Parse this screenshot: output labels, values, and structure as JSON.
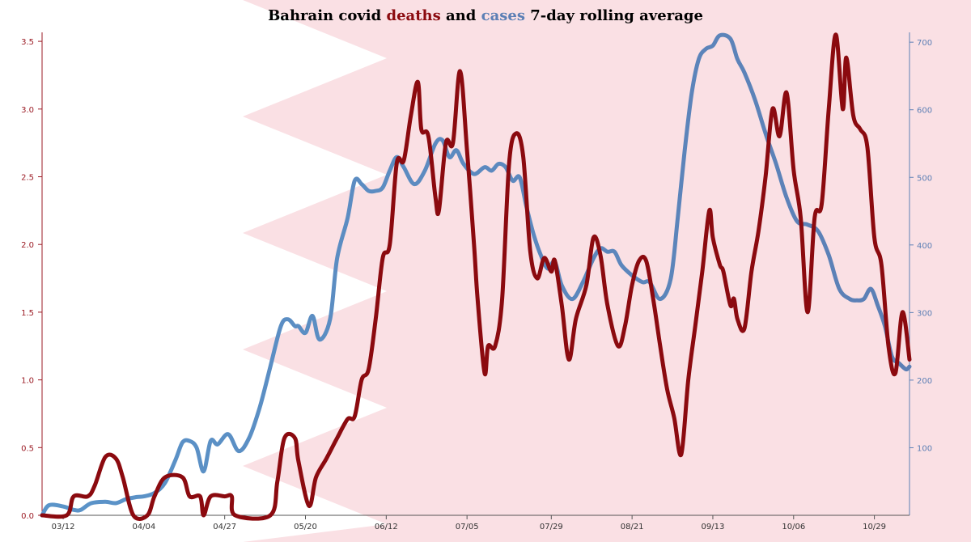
{
  "title": {
    "part1": "Bahrain covid ",
    "deaths_word": "deaths",
    "part2": " and ",
    "cases_word": "cases",
    "part3": " 7-day rolling average"
  },
  "colors": {
    "deaths": "#8b0a0f",
    "cases": "#5c7fb5",
    "cases_early": "#5b94c9",
    "flag": "#fae0e4",
    "axis": "#555555",
    "left_axis": "#9b1b24",
    "right_axis": "#5c7fb5"
  },
  "chart_data": {
    "type": "line",
    "x_axis": {
      "type": "date",
      "range": [
        "2020-03-06",
        "2020-11-08"
      ],
      "tick_labels": [
        "03/12",
        "04/04",
        "04/27",
        "05/20",
        "06/12",
        "07/05",
        "07/29",
        "08/21",
        "09/13",
        "10/06",
        "10/29"
      ],
      "tick_dates": [
        "2020-03-12",
        "2020-04-04",
        "2020-04-27",
        "2020-05-20",
        "2020-06-12",
        "2020-07-05",
        "2020-07-29",
        "2020-08-21",
        "2020-09-13",
        "2020-10-06",
        "2020-10-29"
      ]
    },
    "y_left": {
      "series": "deaths",
      "range": [
        0,
        3.6
      ],
      "ticks": [
        "0.0",
        "0.5",
        "1.0",
        "1.5",
        "2.0",
        "2.5",
        "3.0",
        "3.5"
      ],
      "tick_values": [
        0,
        0.5,
        1.0,
        1.5,
        2.0,
        2.5,
        3.0,
        3.5
      ]
    },
    "y_right": {
      "series": "cases",
      "range": [
        0,
        715
      ],
      "ticks": [
        "100",
        "200",
        "300",
        "400",
        "500",
        "600",
        "700"
      ],
      "tick_values": [
        100,
        200,
        300,
        400,
        500,
        600,
        700
      ]
    },
    "grid": false,
    "series": [
      {
        "key": "deaths",
        "axis": "left",
        "points": [
          [
            "2020-03-06",
            0
          ],
          [
            "2020-03-13",
            0
          ],
          [
            "2020-03-15",
            0.14
          ],
          [
            "2020-03-19",
            0.14
          ],
          [
            "2020-03-21",
            0.22
          ],
          [
            "2020-03-24",
            0.43
          ],
          [
            "2020-03-27",
            0.42
          ],
          [
            "2020-03-29",
            0.28
          ],
          [
            "2020-04-01",
            0.0
          ],
          [
            "2020-04-05",
            0.0
          ],
          [
            "2020-04-07",
            0.14
          ],
          [
            "2020-04-10",
            0.28
          ],
          [
            "2020-04-15",
            0.28
          ],
          [
            "2020-04-17",
            0.14
          ],
          [
            "2020-04-20",
            0.14
          ],
          [
            "2020-04-21",
            0.0
          ],
          [
            "2020-04-23",
            0.14
          ],
          [
            "2020-04-27",
            0.14
          ],
          [
            "2020-04-29",
            0.14
          ],
          [
            "2020-04-30",
            0.0
          ],
          [
            "2020-05-10",
            0.0
          ],
          [
            "2020-05-12",
            0.25
          ],
          [
            "2020-05-14",
            0.57
          ],
          [
            "2020-05-17",
            0.57
          ],
          [
            "2020-05-18",
            0.4
          ],
          [
            "2020-05-21",
            0.07
          ],
          [
            "2020-05-23",
            0.28
          ],
          [
            "2020-05-26",
            0.42
          ],
          [
            "2020-05-29",
            0.57
          ],
          [
            "2020-06-01",
            0.71
          ],
          [
            "2020-06-03",
            0.73
          ],
          [
            "2020-06-05",
            1.0
          ],
          [
            "2020-06-07",
            1.08
          ],
          [
            "2020-06-09",
            1.45
          ],
          [
            "2020-06-11",
            1.9
          ],
          [
            "2020-06-13",
            2.0
          ],
          [
            "2020-06-15",
            2.6
          ],
          [
            "2020-06-17",
            2.62
          ],
          [
            "2020-06-19",
            2.95
          ],
          [
            "2020-06-21",
            3.2
          ],
          [
            "2020-06-22",
            2.85
          ],
          [
            "2020-06-24",
            2.8
          ],
          [
            "2020-06-26",
            2.35
          ],
          [
            "2020-06-27",
            2.25
          ],
          [
            "2020-06-29",
            2.75
          ],
          [
            "2020-07-01",
            2.75
          ],
          [
            "2020-07-03",
            3.28
          ],
          [
            "2020-07-05",
            2.7
          ],
          [
            "2020-07-07",
            2.0
          ],
          [
            "2020-07-08",
            1.6
          ],
          [
            "2020-07-10",
            1.05
          ],
          [
            "2020-07-11",
            1.25
          ],
          [
            "2020-07-13",
            1.25
          ],
          [
            "2020-07-15",
            1.6
          ],
          [
            "2020-07-17",
            2.6
          ],
          [
            "2020-07-19",
            2.82
          ],
          [
            "2020-07-21",
            2.65
          ],
          [
            "2020-07-23",
            1.95
          ],
          [
            "2020-07-25",
            1.75
          ],
          [
            "2020-07-27",
            1.9
          ],
          [
            "2020-07-29",
            1.8
          ],
          [
            "2020-07-30",
            1.88
          ],
          [
            "2020-08-01",
            1.55
          ],
          [
            "2020-08-03",
            1.15
          ],
          [
            "2020-08-05",
            1.45
          ],
          [
            "2020-08-08",
            1.7
          ],
          [
            "2020-08-10",
            2.05
          ],
          [
            "2020-08-12",
            1.92
          ],
          [
            "2020-08-14",
            1.55
          ],
          [
            "2020-08-17",
            1.25
          ],
          [
            "2020-08-19",
            1.4
          ],
          [
            "2020-08-21",
            1.7
          ],
          [
            "2020-08-23",
            1.88
          ],
          [
            "2020-08-25",
            1.88
          ],
          [
            "2020-08-27",
            1.6
          ],
          [
            "2020-08-29",
            1.25
          ],
          [
            "2020-08-31",
            0.93
          ],
          [
            "2020-09-02",
            0.72
          ],
          [
            "2020-09-04",
            0.45
          ],
          [
            "2020-09-06",
            1.0
          ],
          [
            "2020-09-08",
            1.4
          ],
          [
            "2020-09-10",
            1.8
          ],
          [
            "2020-09-12",
            2.25
          ],
          [
            "2020-09-13",
            2.05
          ],
          [
            "2020-09-15",
            1.85
          ],
          [
            "2020-09-16",
            1.8
          ],
          [
            "2020-09-18",
            1.55
          ],
          [
            "2020-09-19",
            1.6
          ],
          [
            "2020-09-20",
            1.45
          ],
          [
            "2020-09-22",
            1.38
          ],
          [
            "2020-09-24",
            1.8
          ],
          [
            "2020-09-26",
            2.1
          ],
          [
            "2020-09-28",
            2.5
          ],
          [
            "2020-09-30",
            3.0
          ],
          [
            "2020-10-02",
            2.8
          ],
          [
            "2020-10-04",
            3.12
          ],
          [
            "2020-10-06",
            2.55
          ],
          [
            "2020-10-08",
            2.2
          ],
          [
            "2020-10-10",
            1.5
          ],
          [
            "2020-10-12",
            2.2
          ],
          [
            "2020-10-14",
            2.3
          ],
          [
            "2020-10-16",
            3.0
          ],
          [
            "2020-10-18",
            3.55
          ],
          [
            "2020-10-20",
            3.0
          ],
          [
            "2020-10-21",
            3.38
          ],
          [
            "2020-10-23",
            2.95
          ],
          [
            "2020-10-25",
            2.85
          ],
          [
            "2020-10-27",
            2.72
          ],
          [
            "2020-10-29",
            2.05
          ],
          [
            "2020-10-31",
            1.85
          ],
          [
            "2020-11-02",
            1.25
          ],
          [
            "2020-11-04",
            1.05
          ],
          [
            "2020-11-06",
            1.5
          ],
          [
            "2020-11-08",
            1.15
          ]
        ]
      },
      {
        "key": "cases",
        "axis": "right",
        "points": [
          [
            "2020-03-06",
            0
          ],
          [
            "2020-03-08",
            15
          ],
          [
            "2020-03-12",
            13
          ],
          [
            "2020-03-15",
            8
          ],
          [
            "2020-03-17",
            8
          ],
          [
            "2020-03-20",
            18
          ],
          [
            "2020-03-24",
            20
          ],
          [
            "2020-03-27",
            18
          ],
          [
            "2020-03-30",
            24
          ],
          [
            "2020-04-02",
            27
          ],
          [
            "2020-04-04",
            28
          ],
          [
            "2020-04-07",
            33
          ],
          [
            "2020-04-10",
            48
          ],
          [
            "2020-04-13",
            82
          ],
          [
            "2020-04-15",
            108
          ],
          [
            "2020-04-17",
            110
          ],
          [
            "2020-04-19",
            100
          ],
          [
            "2020-04-21",
            65
          ],
          [
            "2020-04-23",
            110
          ],
          [
            "2020-04-25",
            105
          ],
          [
            "2020-04-28",
            120
          ],
          [
            "2020-05-01",
            95
          ],
          [
            "2020-05-04",
            115
          ],
          [
            "2020-05-07",
            160
          ],
          [
            "2020-05-10",
            220
          ],
          [
            "2020-05-13",
            280
          ],
          [
            "2020-05-15",
            290
          ],
          [
            "2020-05-17",
            280
          ],
          [
            "2020-05-18",
            280
          ],
          [
            "2020-05-20",
            270
          ],
          [
            "2020-05-22",
            295
          ],
          [
            "2020-05-24",
            260
          ],
          [
            "2020-05-27",
            290
          ],
          [
            "2020-05-29",
            380
          ],
          [
            "2020-06-01",
            440
          ],
          [
            "2020-06-03",
            495
          ],
          [
            "2020-06-05",
            490
          ],
          [
            "2020-06-07",
            480
          ],
          [
            "2020-06-09",
            480
          ],
          [
            "2020-06-11",
            485
          ],
          [
            "2020-06-13",
            510
          ],
          [
            "2020-06-15",
            530
          ],
          [
            "2020-06-17",
            515
          ],
          [
            "2020-06-20",
            490
          ],
          [
            "2020-06-23",
            510
          ],
          [
            "2020-06-26",
            550
          ],
          [
            "2020-06-28",
            555
          ],
          [
            "2020-06-30",
            530
          ],
          [
            "2020-07-02",
            540
          ],
          [
            "2020-07-04",
            520
          ],
          [
            "2020-07-07",
            505
          ],
          [
            "2020-07-10",
            515
          ],
          [
            "2020-07-12",
            510
          ],
          [
            "2020-07-14",
            520
          ],
          [
            "2020-07-16",
            515
          ],
          [
            "2020-07-18",
            495
          ],
          [
            "2020-07-20",
            500
          ],
          [
            "2020-07-22",
            455
          ],
          [
            "2020-07-24",
            415
          ],
          [
            "2020-07-26",
            385
          ],
          [
            "2020-07-28",
            365
          ],
          [
            "2020-07-30",
            375
          ],
          [
            "2020-08-01",
            340
          ],
          [
            "2020-08-04",
            320
          ],
          [
            "2020-08-07",
            345
          ],
          [
            "2020-08-10",
            380
          ],
          [
            "2020-08-12",
            395
          ],
          [
            "2020-08-14",
            390
          ],
          [
            "2020-08-16",
            390
          ],
          [
            "2020-08-18",
            370
          ],
          [
            "2020-08-21",
            355
          ],
          [
            "2020-08-24",
            345
          ],
          [
            "2020-08-26",
            345
          ],
          [
            "2020-08-29",
            320
          ],
          [
            "2020-09-01",
            350
          ],
          [
            "2020-09-03",
            440
          ],
          [
            "2020-09-05",
            540
          ],
          [
            "2020-09-07",
            625
          ],
          [
            "2020-09-09",
            675
          ],
          [
            "2020-09-11",
            690
          ],
          [
            "2020-09-13",
            695
          ],
          [
            "2020-09-15",
            710
          ],
          [
            "2020-09-18",
            705
          ],
          [
            "2020-09-20",
            675
          ],
          [
            "2020-09-22",
            655
          ],
          [
            "2020-09-25",
            615
          ],
          [
            "2020-09-28",
            565
          ],
          [
            "2020-10-01",
            520
          ],
          [
            "2020-10-04",
            470
          ],
          [
            "2020-10-07",
            435
          ],
          [
            "2020-10-10",
            430
          ],
          [
            "2020-10-13",
            420
          ],
          [
            "2020-10-16",
            385
          ],
          [
            "2020-10-19",
            335
          ],
          [
            "2020-10-22",
            320
          ],
          [
            "2020-10-24",
            318
          ],
          [
            "2020-10-26",
            320
          ],
          [
            "2020-10-28",
            335
          ],
          [
            "2020-10-30",
            310
          ],
          [
            "2020-11-01",
            280
          ],
          [
            "2020-11-03",
            235
          ],
          [
            "2020-11-05",
            225
          ],
          [
            "2020-11-07",
            216
          ],
          [
            "2020-11-08",
            220
          ]
        ]
      }
    ]
  }
}
